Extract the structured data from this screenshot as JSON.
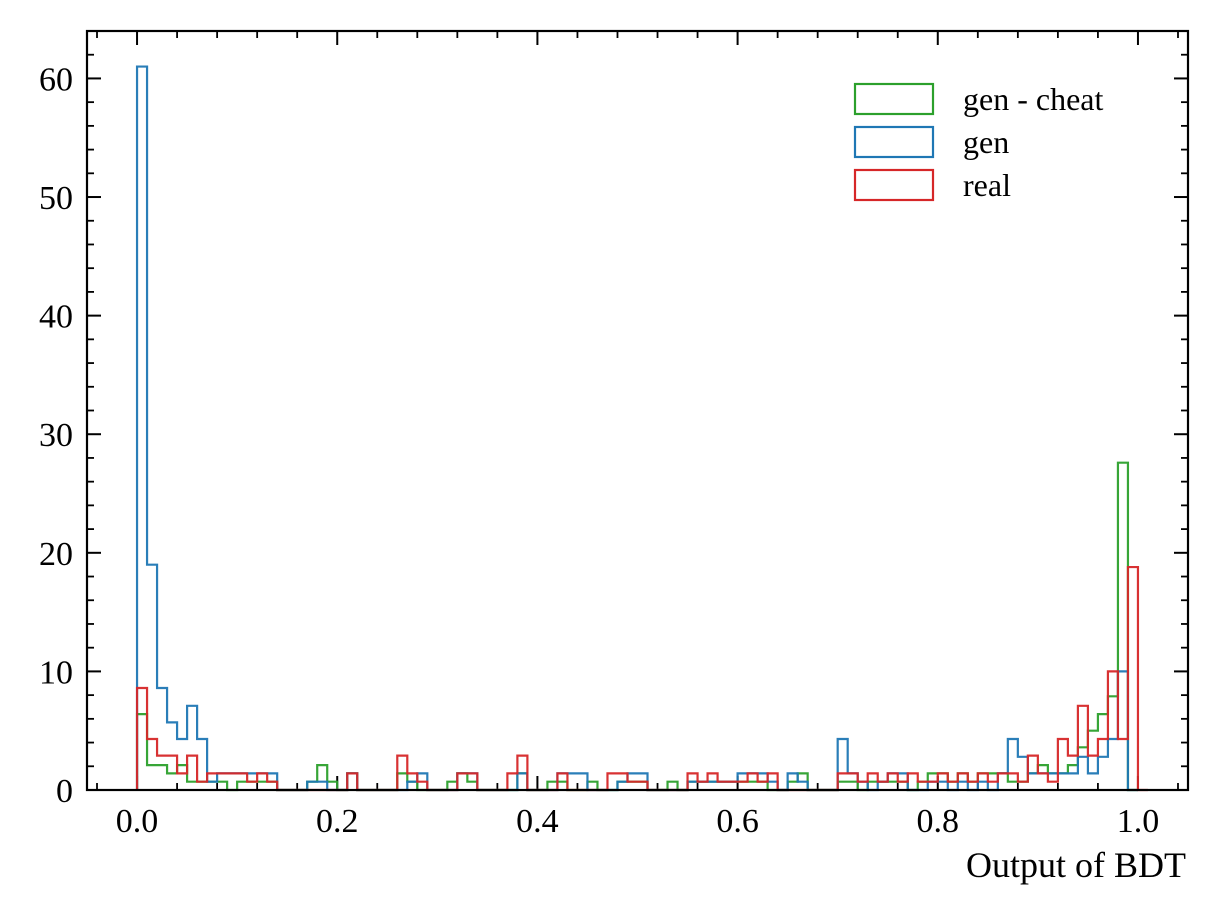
{
  "chart_data": {
    "type": "histogram",
    "title": "",
    "xlabel": "Output of BDT",
    "ylabel": "",
    "xlim": [
      -0.05,
      1.05
    ],
    "ylim": [
      0,
      64
    ],
    "xticks": [
      0.0,
      0.2,
      0.4,
      0.6,
      0.8,
      1.0
    ],
    "xtick_labels": [
      "0.0",
      "0.2",
      "0.4",
      "0.6",
      "0.8",
      "1.0"
    ],
    "yticks": [
      0,
      10,
      20,
      30,
      40,
      50,
      60
    ],
    "ytick_labels": [
      "0",
      "10",
      "20",
      "30",
      "40",
      "50",
      "60"
    ],
    "bins": {
      "start": 0.0,
      "width": 0.01,
      "count": 100
    },
    "grid": false,
    "legend_position": "top-right",
    "series": [
      {
        "name": "gen - cheat",
        "color": "#2ca02c",
        "counts": [
          6.4,
          2.1,
          2.1,
          1.4,
          2.1,
          0.7,
          0.7,
          0.7,
          0.7,
          0,
          0.7,
          0.7,
          0.7,
          0.7,
          0,
          0,
          0,
          0.7,
          2.1,
          0.7,
          0,
          1.4,
          0,
          0,
          0,
          0,
          1.4,
          0.7,
          0,
          0,
          0,
          0.7,
          1.4,
          0.7,
          0,
          0,
          0,
          0,
          1.4,
          0,
          0,
          0.7,
          0.7,
          0,
          0,
          0.7,
          0,
          0,
          0.7,
          0.7,
          0.7,
          0,
          0,
          0.7,
          0,
          0.7,
          0.7,
          0.7,
          0.7,
          0.7,
          0.7,
          0.7,
          0.7,
          0,
          0,
          0.7,
          1.4,
          0,
          0,
          0,
          0.7,
          0.7,
          0,
          0.7,
          0.7,
          0.7,
          0.7,
          0,
          0.7,
          1.4,
          1.4,
          0.7,
          1.4,
          0.7,
          1.4,
          1.4,
          1.4,
          0.7,
          0.7,
          1.4,
          2.1,
          1.4,
          1.4,
          2.1,
          3.6,
          5.0,
          6.4,
          7.9,
          27.6,
          0
        ]
      },
      {
        "name": "gen",
        "color": "#1f77b4",
        "counts": [
          61.0,
          19.0,
          8.6,
          5.7,
          4.3,
          7.1,
          4.3,
          0.7,
          1.4,
          1.4,
          1.4,
          1.4,
          1.4,
          1.4,
          0,
          0,
          0,
          0.7,
          0.7,
          0,
          0,
          1.4,
          0,
          0,
          0,
          0,
          0,
          0.7,
          1.4,
          0,
          0,
          0,
          1.4,
          1.4,
          0,
          0,
          0,
          0,
          1.4,
          0,
          0,
          0,
          1.4,
          1.4,
          1.4,
          0,
          0,
          0,
          0.7,
          1.4,
          1.4,
          0,
          0,
          0,
          0,
          0.7,
          0.7,
          0.7,
          0.7,
          0.7,
          1.4,
          1.4,
          1.4,
          0.7,
          0,
          1.4,
          0.7,
          0,
          0,
          0,
          4.3,
          1.4,
          0.7,
          0,
          0.7,
          1.4,
          1.4,
          0,
          0,
          0.7,
          0.7,
          0,
          0.7,
          0,
          0.7,
          0,
          1.4,
          4.3,
          2.8,
          1.4,
          1.4,
          1.4,
          1.4,
          1.4,
          2.8,
          1.4,
          2.8,
          4.3,
          10.0,
          0
        ]
      },
      {
        "name": "real",
        "color": "#d62728",
        "counts": [
          8.6,
          4.3,
          2.9,
          2.9,
          1.4,
          2.9,
          0.7,
          1.4,
          1.4,
          1.4,
          1.4,
          0.7,
          1.4,
          0.7,
          0,
          0,
          0,
          0,
          0,
          0,
          0,
          1.4,
          0,
          0,
          0,
          0,
          2.9,
          1.4,
          0.7,
          0,
          0,
          0,
          1.4,
          1.4,
          0,
          0,
          0,
          1.4,
          2.9,
          0,
          0,
          0,
          1.4,
          0,
          0,
          0,
          0,
          1.4,
          1.4,
          0.7,
          0.7,
          0,
          0,
          0,
          0,
          1.4,
          0.7,
          1.4,
          0.7,
          0.7,
          0.7,
          1.4,
          0.7,
          1.4,
          0,
          0,
          0,
          0,
          0,
          0,
          1.4,
          1.4,
          0.7,
          1.4,
          0.7,
          1.4,
          0.7,
          1.4,
          0.7,
          0.7,
          1.4,
          0.7,
          1.4,
          0.7,
          1.4,
          0.7,
          1.4,
          1.4,
          0.7,
          2.9,
          1.4,
          0.7,
          4.3,
          2.9,
          7.1,
          2.9,
          4.3,
          10.0,
          4.3,
          18.8,
          0
        ]
      }
    ]
  }
}
